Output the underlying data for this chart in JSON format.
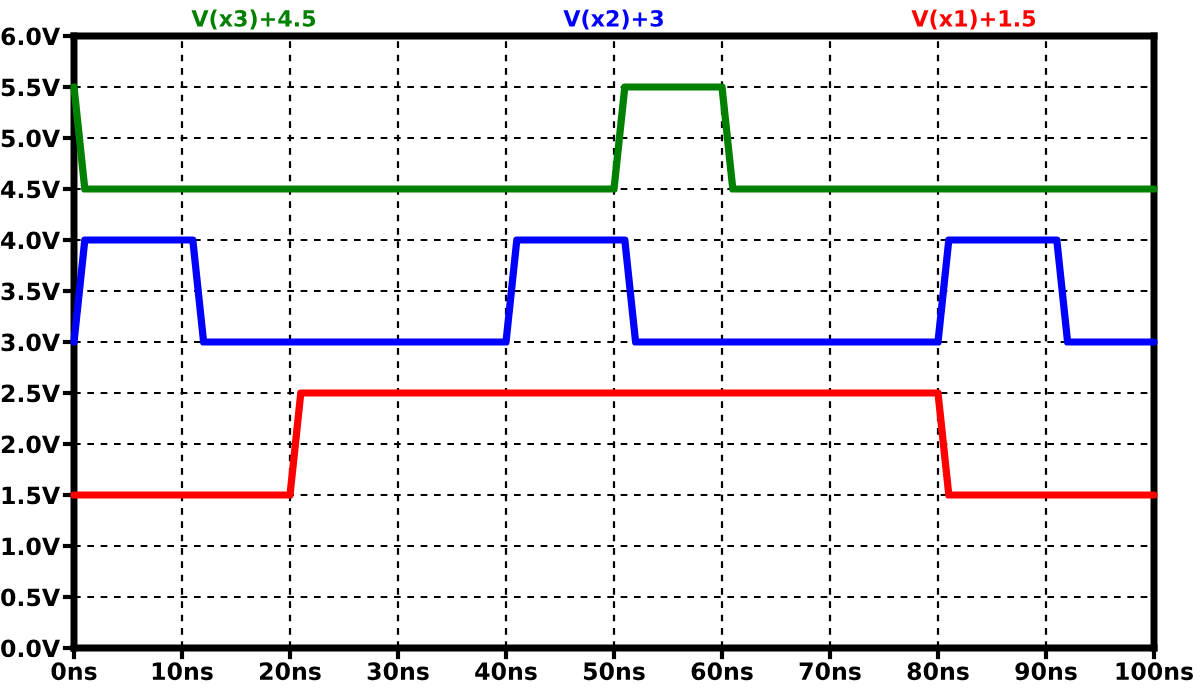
{
  "chart_data": {
    "type": "line",
    "series": [
      {
        "name": "V(x3)+4.5",
        "color": "#008000",
        "x": [
          0,
          1,
          50,
          51,
          60,
          61,
          100
        ],
        "values": [
          5.5,
          4.5,
          4.5,
          5.5,
          5.5,
          4.5,
          4.5
        ]
      },
      {
        "name": "V(x2)+3",
        "color": "#0000ff",
        "x": [
          0,
          1,
          11,
          12,
          40,
          41,
          51,
          52,
          80,
          81,
          91,
          92,
          100
        ],
        "values": [
          3,
          4,
          4,
          3,
          3,
          4,
          4,
          3,
          3,
          4,
          4,
          3,
          3
        ]
      },
      {
        "name": "V(x1)+1.5",
        "color": "#ff0000",
        "x": [
          0,
          20,
          21,
          80,
          81,
          100
        ],
        "values": [
          1.5,
          1.5,
          2.5,
          2.5,
          1.5,
          1.5
        ]
      }
    ],
    "xlim": [
      0,
      100
    ],
    "xticks": [
      {
        "value": 0,
        "label": "0ns"
      },
      {
        "value": 10,
        "label": "10ns"
      },
      {
        "value": 20,
        "label": "20ns"
      },
      {
        "value": 30,
        "label": "30ns"
      },
      {
        "value": 40,
        "label": "40ns"
      },
      {
        "value": 50,
        "label": "50ns"
      },
      {
        "value": 60,
        "label": "60ns"
      },
      {
        "value": 70,
        "label": "70ns"
      },
      {
        "value": 80,
        "label": "80ns"
      },
      {
        "value": 90,
        "label": "90ns"
      },
      {
        "value": 100,
        "label": "100ns"
      }
    ],
    "ylim": [
      0,
      6
    ],
    "yticks": [
      {
        "value": 0,
        "label": "0.0V"
      },
      {
        "value": 0.5,
        "label": "0.5V"
      },
      {
        "value": 1,
        "label": "1.0V"
      },
      {
        "value": 1.5,
        "label": "1.5V"
      },
      {
        "value": 2,
        "label": "2.0V"
      },
      {
        "value": 2.5,
        "label": "2.5V"
      },
      {
        "value": 3,
        "label": "3.0V"
      },
      {
        "value": 3.5,
        "label": "3.5V"
      },
      {
        "value": 4,
        "label": "4.0V"
      },
      {
        "value": 4.5,
        "label": "4.5V"
      },
      {
        "value": 5,
        "label": "5.0V"
      },
      {
        "value": 5.5,
        "label": "5.5V"
      },
      {
        "value": 6,
        "label": "6.0V"
      }
    ],
    "grid": true,
    "line_style": "solid",
    "marker": "none"
  }
}
